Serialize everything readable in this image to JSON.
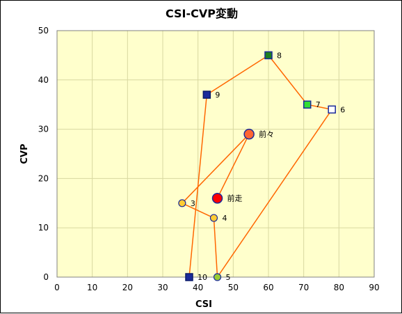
{
  "chart_data": {
    "type": "scatter",
    "title": "CSI-CVP変動",
    "xlabel": "CSI",
    "ylabel": "CVP",
    "xlim": [
      0,
      90
    ],
    "ylim": [
      0,
      50
    ],
    "x_ticks": [
      "0",
      "10",
      "20",
      "30",
      "40",
      "50",
      "60",
      "70",
      "80",
      "90"
    ],
    "y_ticks": [
      "0",
      "10",
      "20",
      "30",
      "40",
      "50"
    ],
    "grid": true,
    "plot_background": "#ffffcc",
    "grid_color": "#d8d8a0",
    "line_color": "#ff6600",
    "points": [
      {
        "label": "10",
        "x": 37.5,
        "y": 0,
        "marker": "square",
        "fill": "#1a2a9a",
        "stroke": "#0a1a6a"
      },
      {
        "label": "9",
        "x": 42.5,
        "y": 37,
        "marker": "square",
        "fill": "#1a2a9a",
        "stroke": "#0a1a6a"
      },
      {
        "label": "8",
        "x": 60,
        "y": 45,
        "marker": "square",
        "fill": "#1f7f1f",
        "stroke": "#1a2a9a"
      },
      {
        "label": "7",
        "x": 71,
        "y": 35,
        "marker": "square",
        "fill": "#33dd33",
        "stroke": "#1a2a9a"
      },
      {
        "label": "6",
        "x": 78,
        "y": 34,
        "marker": "square",
        "fill": "#ffffff",
        "stroke": "#1a2a9a"
      },
      {
        "label": "5",
        "x": 45.5,
        "y": 0,
        "marker": "circle",
        "fill": "#99cc33",
        "stroke": "#1a2a9a"
      },
      {
        "label": "4",
        "x": 44.5,
        "y": 12,
        "marker": "circle",
        "fill": "#ffcc33",
        "stroke": "#1a2a9a"
      },
      {
        "label": "3",
        "x": 35.5,
        "y": 15,
        "marker": "circle",
        "fill": "#ffcc33",
        "stroke": "#1a2a9a"
      },
      {
        "label": "前々",
        "x": 54.5,
        "y": 29,
        "marker": "circle-large",
        "fill": "#ff6633",
        "stroke": "#1a2a9a"
      },
      {
        "label": "前走",
        "x": 45.5,
        "y": 16,
        "marker": "circle-large",
        "fill": "#ff0000",
        "stroke": "#1a2a9a"
      }
    ],
    "path_order": [
      "10",
      "9",
      "8",
      "7",
      "6",
      "5",
      "4",
      "3",
      "前々",
      "前走"
    ]
  }
}
